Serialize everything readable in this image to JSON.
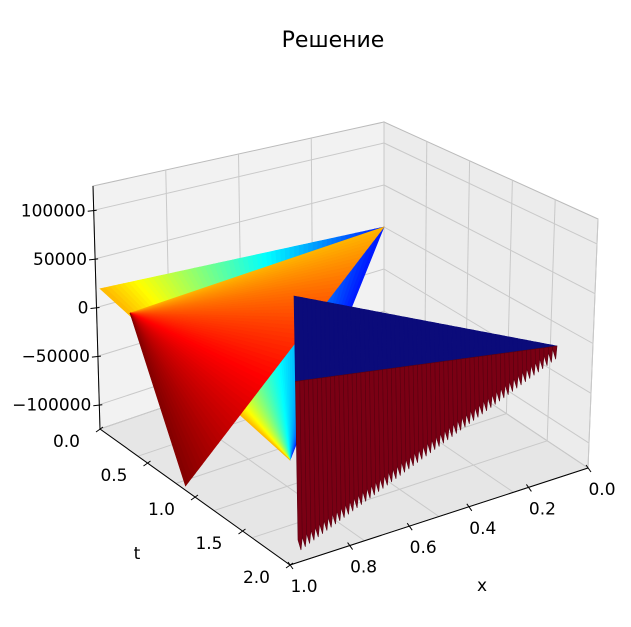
{
  "chart_data": {
    "type": "surface3d",
    "title": "Решение",
    "xlabel": "x",
    "ylabel": "t",
    "zlabel": "",
    "xlim": [
      0.0,
      1.0
    ],
    "tlim": [
      0.0,
      2.0
    ],
    "zlim": [
      -125000,
      125000
    ],
    "x_ticks": [
      "0.0",
      "0.2",
      "0.4",
      "0.6",
      "0.8",
      "1.0"
    ],
    "t_ticks": [
      "0.0",
      "0.5",
      "1.0",
      "1.5",
      "2.0"
    ],
    "z_ticks": [
      "100000",
      "50000",
      "0",
      "−50000",
      "−100000"
    ],
    "grid": true,
    "colormap": "jet",
    "surface_corner_values": {
      "x0_t0": 0,
      "x1_t0": 0,
      "x0_t2": 0,
      "x1_t2_upper": 120000,
      "x1_t2_lower": -120000
    }
  }
}
